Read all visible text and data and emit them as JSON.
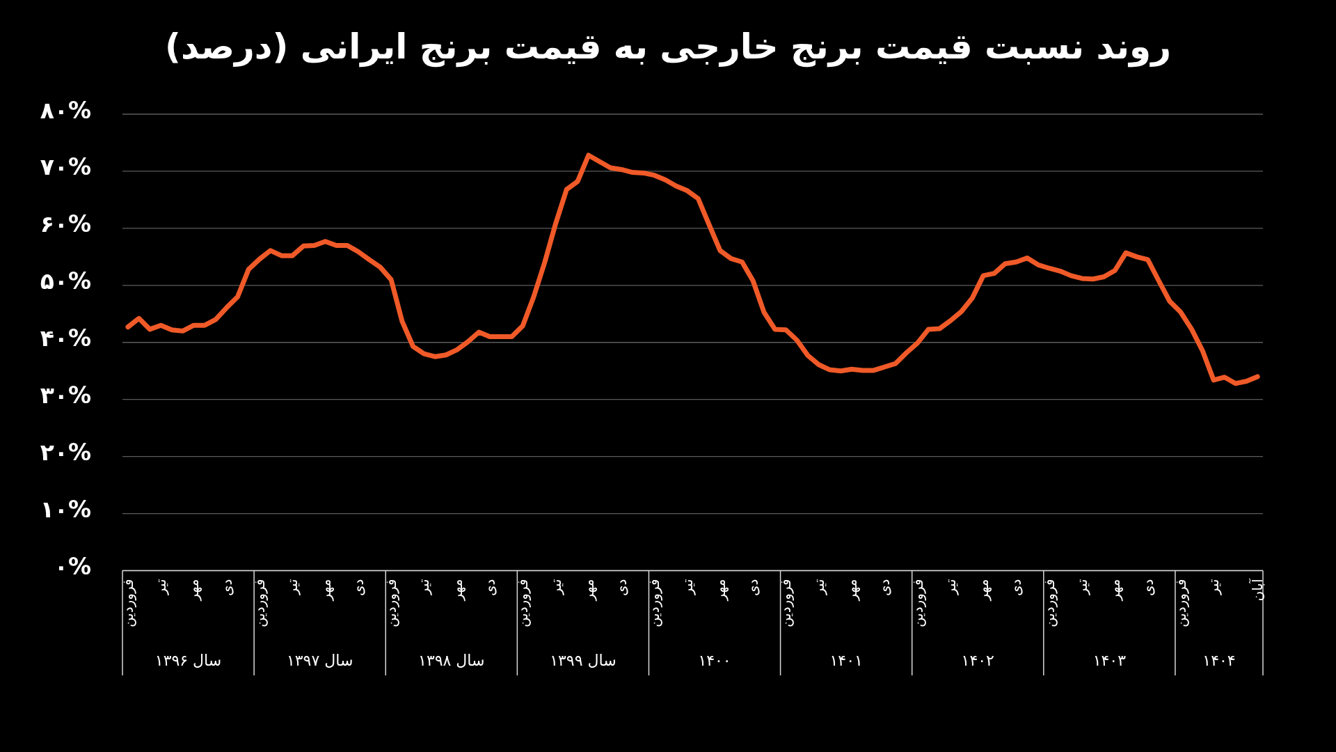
{
  "chart_data": {
    "type": "line",
    "title": "روند نسبت قیمت برنج خارجی به قیمت برنج ایرانی (درصد)",
    "categories": [
      "فروردین",
      null,
      null,
      "تیر",
      null,
      null,
      "مهر",
      null,
      null,
      "دی",
      null,
      null,
      "فروردین",
      null,
      null,
      "تیر",
      null,
      null,
      "مهر",
      null,
      null,
      "دی",
      null,
      null,
      "فروردین",
      null,
      null,
      "تیر",
      null,
      null,
      "مهر",
      null,
      null,
      "دی",
      null,
      null,
      "فروردین",
      null,
      null,
      "تیر",
      null,
      null,
      "مهر",
      null,
      null,
      "دی",
      null,
      null,
      "فروردین",
      null,
      null,
      "تیر",
      null,
      null,
      "مهر",
      null,
      null,
      "دی",
      null,
      null,
      "فروردین",
      null,
      null,
      "تیر",
      null,
      null,
      "مهر",
      null,
      null,
      "دی",
      null,
      null,
      "فروردین",
      null,
      null,
      "تیر",
      null,
      null,
      "مهر",
      null,
      null,
      "دی",
      null,
      null,
      "فروردین",
      null,
      null,
      "تیر",
      null,
      null,
      "مهر",
      null,
      null,
      "دی",
      null,
      null,
      "فروردین",
      null,
      null,
      "تیر",
      null,
      null,
      null,
      "آبان"
    ],
    "series": [
      {
        "color": "#f05a28",
        "values": [
          42.7,
          44.2,
          42.3,
          43.0,
          42.2,
          42.0,
          43.0,
          43.0,
          44.0,
          46.1,
          48.0,
          52.8,
          54.6,
          56.1,
          55.2,
          55.2,
          56.9,
          57.0,
          57.7,
          57.0,
          57.0,
          55.9,
          54.5,
          53.2,
          51.0,
          43.7,
          39.3,
          38.0,
          37.5,
          37.8,
          38.7,
          40.1,
          41.8,
          41.0,
          41.0,
          41.0,
          42.9,
          48.0,
          54.0,
          60.8,
          66.8,
          68.2,
          72.8,
          71.7,
          70.6,
          70.3,
          69.8,
          69.7,
          69.3,
          68.5,
          67.4,
          66.6,
          65.2,
          60.6,
          56.1,
          54.7,
          54.1,
          50.8,
          45.3,
          42.3,
          42.2,
          40.4,
          37.7,
          36.1,
          35.2,
          35.0,
          35.3,
          35.1,
          35.1,
          35.7,
          36.3,
          38.2,
          39.9,
          42.3,
          42.4,
          43.8,
          45.4,
          47.8,
          51.7,
          52.1,
          53.8,
          54.1,
          54.8,
          53.6,
          53.0,
          52.5,
          51.7,
          51.2,
          51.1,
          51.5,
          52.6,
          55.7,
          55.0,
          54.5,
          50.8,
          47.2,
          45.3,
          42.3,
          38.5,
          33.4,
          33.9,
          32.8,
          33.2,
          34.0
        ]
      }
    ],
    "ylim": [
      0,
      80
    ],
    "yticks": [
      {
        "value": 0,
        "label": "۰%"
      },
      {
        "value": 10,
        "label": "۱۰%"
      },
      {
        "value": 20,
        "label": "۲۰%"
      },
      {
        "value": 30,
        "label": "۳۰%"
      },
      {
        "value": 40,
        "label": "۴۰%"
      },
      {
        "value": 50,
        "label": "۵۰%"
      },
      {
        "value": 60,
        "label": "۶۰%"
      },
      {
        "value": 70,
        "label": "۷۰%"
      },
      {
        "value": 80,
        "label": "۸۰%"
      }
    ],
    "grid": "y",
    "annotations": [
      "سال ۱۳۹۶",
      "سال ۱۳۹۷",
      "سال ۱۳۹۸",
      "سال ۱۳۹۹",
      "۱۴۰۰",
      "۱۴۰۱",
      "۱۴۰۲",
      "۱۴۰۳",
      "۱۴۰۴"
    ]
  }
}
